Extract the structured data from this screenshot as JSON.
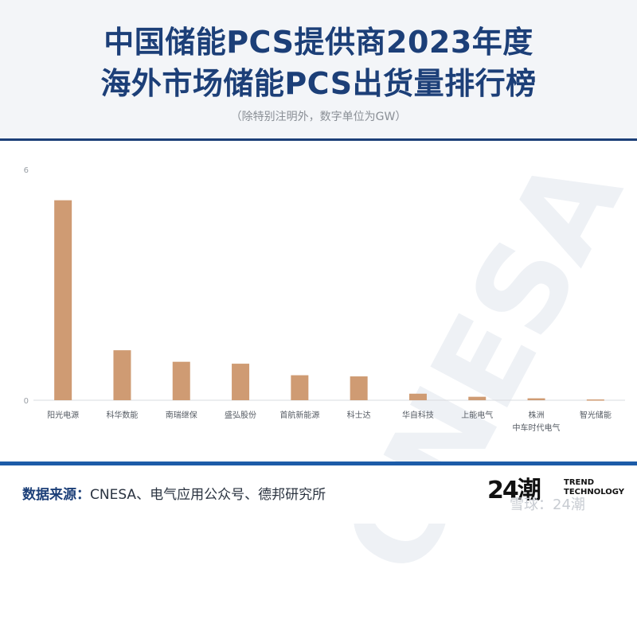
{
  "header": {
    "title_line1": "中国储能PCS提供商2023年度",
    "title_line2": "海外市场储能PCS出货量排行榜",
    "note": "（除特别注明外，数字单位为GW）"
  },
  "chart_data": {
    "type": "bar",
    "categories": [
      "阳光电源",
      "科华数能",
      "南瑞继保",
      "盛弘股份",
      "首航新能源",
      "科士达",
      "华自科技",
      "上能电气",
      "株洲\n中车时代电气",
      "智光储能"
    ],
    "values": [
      5.2,
      1.3,
      1.0,
      0.95,
      0.65,
      0.62,
      0.17,
      0.09,
      0.05,
      0.02
    ],
    "ylim": [
      0,
      6
    ],
    "yticks": [
      "0",
      "6"
    ],
    "grid": false,
    "bar_color": "#cf9b73"
  },
  "watermark_text": "CNESA",
  "footer": {
    "source_label": "数据来源：",
    "source_value": "CNESA、电气应用公众号、德邦研究所",
    "logo_mark": "24潮",
    "logo_line1": "TREND",
    "logo_line2": "TECHNOLOGY",
    "bottom_watermark": "雪球：24潮"
  }
}
